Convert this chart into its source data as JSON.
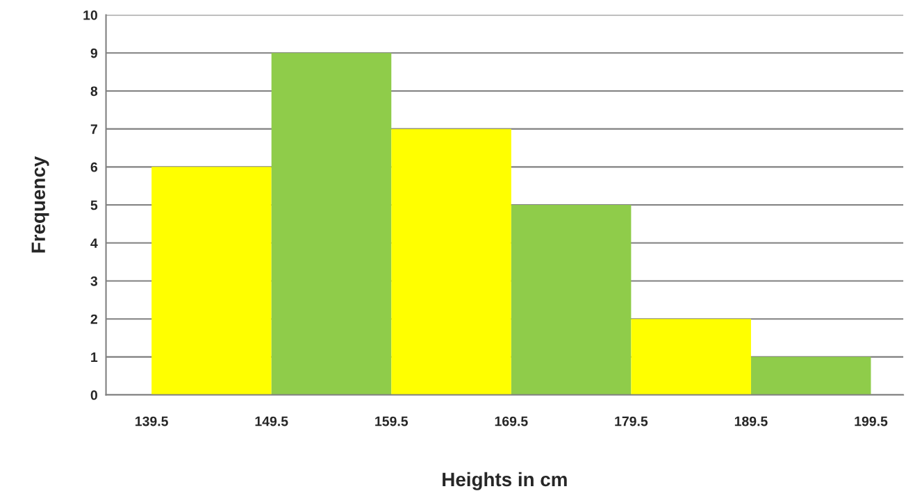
{
  "chart_data": {
    "type": "histogram",
    "xlabel": "Heights in cm",
    "ylabel": "Frequency",
    "bins": [
      139.5,
      149.5,
      159.5,
      169.5,
      179.5,
      189.5,
      199.5
    ],
    "values": [
      6,
      9,
      7,
      5,
      2,
      1
    ],
    "colors": [
      "#ffff00",
      "#8fcc4a",
      "#ffff00",
      "#8fcc4a",
      "#ffff00",
      "#8fcc4a"
    ],
    "xlim": [
      135.7,
      202.2
    ],
    "xticks": [
      139.5,
      149.5,
      159.5,
      169.5,
      179.5,
      189.5,
      199.5
    ],
    "ylim": [
      0,
      10
    ],
    "yticks": [
      0,
      1,
      2,
      3,
      4,
      5,
      6,
      7,
      8,
      9,
      10
    ],
    "grid": "y"
  }
}
